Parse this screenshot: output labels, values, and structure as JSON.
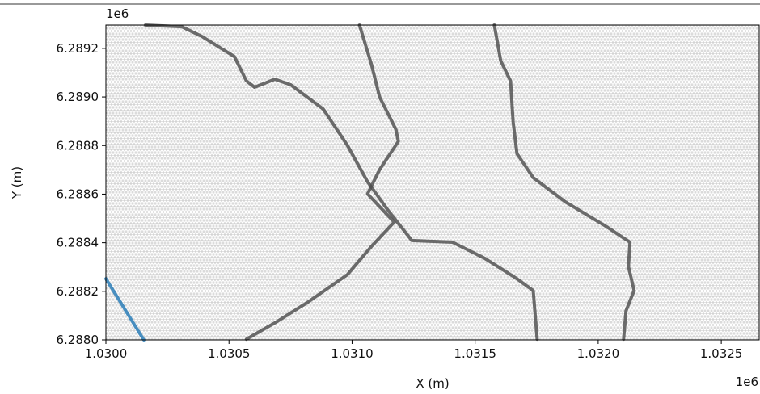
{
  "chart_data": {
    "type": "line",
    "xlabel": "X (m)",
    "ylabel": "Y (m)",
    "x_offset": "1e6",
    "y_offset": "1e6",
    "xlim": [
      1030000,
      1032654
    ],
    "ylim": [
      6288000,
      6289296
    ],
    "xticks": [
      {
        "value": 1030000,
        "label": "1.0300"
      },
      {
        "value": 1030500,
        "label": "1.0305"
      },
      {
        "value": 1031000,
        "label": "1.0310"
      },
      {
        "value": 1031500,
        "label": "1.0315"
      },
      {
        "value": 1032000,
        "label": "1.0320"
      },
      {
        "value": 1032500,
        "label": "1.0325"
      }
    ],
    "yticks": [
      {
        "value": 6288000,
        "label": "6.2880"
      },
      {
        "value": 6288200,
        "label": "6.2882"
      },
      {
        "value": 6288400,
        "label": "6.2884"
      },
      {
        "value": 6288600,
        "label": "6.2886"
      },
      {
        "value": 6288800,
        "label": "6.2888"
      },
      {
        "value": 6289000,
        "label": "6.2890"
      },
      {
        "value": 6289200,
        "label": "6.2892"
      }
    ],
    "mesh_color": "#b8b8b8",
    "lines": [
      {
        "color": "#4a4a4a",
        "x": [
          1030161,
          1030308,
          1030390,
          1030522,
          1030571,
          1030604,
          1030686,
          1030751,
          1030883,
          1030981,
          1031063,
          1031145,
          1031243,
          1031408,
          1031539,
          1031670,
          1031736,
          1031752
        ],
        "y": [
          6289296,
          6289289,
          6289249,
          6289166,
          6289066,
          6289040,
          6289073,
          6289050,
          6288950,
          6288801,
          6288651,
          6288535,
          6288409,
          6288402,
          6288336,
          6288252,
          6288203,
          6288003
        ]
      },
      {
        "color": "#4a4a4a",
        "x": [
          1031030,
          1031079,
          1031112,
          1031178,
          1031188,
          1031112,
          1031063,
          1031171,
          1031079,
          1030981,
          1030817,
          1030686,
          1030571
        ],
        "y": [
          6289296,
          6289133,
          6289000,
          6288867,
          6288817,
          6288701,
          6288601,
          6288485,
          6288385,
          6288269,
          6288153,
          6288070,
          6288003
        ]
      },
      {
        "color": "#4a4a4a",
        "x": [
          1031578,
          1031604,
          1031644,
          1031654,
          1031670,
          1031736,
          1031867,
          1032031,
          1032129,
          1032123,
          1032146,
          1032113,
          1032103
        ],
        "y": [
          6289296,
          6289149,
          6289066,
          6288900,
          6288767,
          6288668,
          6288568,
          6288468,
          6288402,
          6288302,
          6288203,
          6288120,
          6288003
        ]
      },
      {
        "color": "#1f77b4",
        "x": [
          1030000,
          1030154
        ],
        "y": [
          6288252,
          6288000
        ]
      }
    ]
  }
}
